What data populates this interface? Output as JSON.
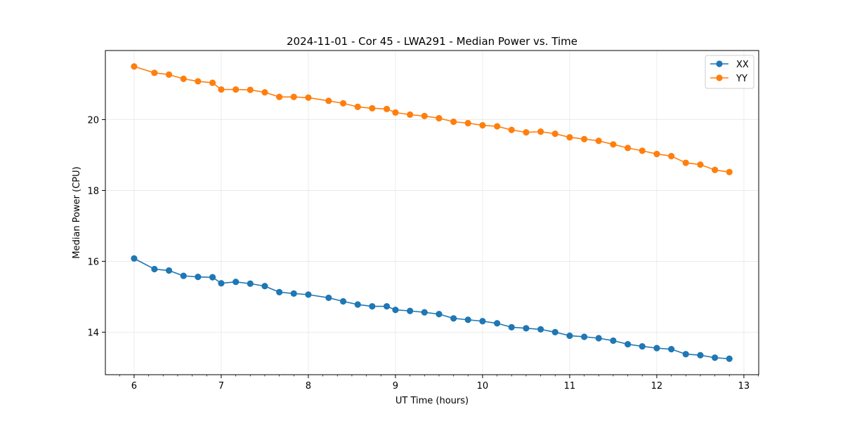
{
  "chart_data": {
    "type": "line",
    "title": "2024-11-01 - Cor 45 - LWA291 - Median Power vs. Time",
    "xlabel": "UT Time (hours)",
    "ylabel": "Median Power (CPU)",
    "xlim": [
      5.67,
      13.17
    ],
    "ylim": [
      12.8,
      21.95
    ],
    "xticks": [
      6,
      7,
      8,
      9,
      10,
      11,
      12,
      13
    ],
    "yticks": [
      14,
      16,
      18,
      20
    ],
    "grid": true,
    "legend_position": "upper right",
    "x": [
      6.0,
      6.233,
      6.4,
      6.567,
      6.733,
      6.9,
      7.0,
      7.167,
      7.333,
      7.5,
      7.667,
      7.833,
      8.0,
      8.233,
      8.4,
      8.567,
      8.733,
      8.9,
      9.0,
      9.167,
      9.333,
      9.5,
      9.667,
      9.833,
      10.0,
      10.167,
      10.333,
      10.5,
      10.667,
      10.833,
      11.0,
      11.167,
      11.333,
      11.5,
      11.667,
      11.833,
      12.0,
      12.167,
      12.333,
      12.5,
      12.667,
      12.833
    ],
    "series": [
      {
        "name": "XX",
        "color": "#1f77b4",
        "values": [
          16.08,
          15.78,
          15.74,
          15.59,
          15.56,
          15.55,
          15.38,
          15.42,
          15.37,
          15.3,
          15.13,
          15.09,
          15.06,
          14.97,
          14.87,
          14.78,
          14.73,
          14.73,
          14.63,
          14.6,
          14.56,
          14.51,
          14.39,
          14.35,
          14.31,
          14.25,
          14.14,
          14.11,
          14.08,
          14.0,
          13.9,
          13.87,
          13.83,
          13.76,
          13.66,
          13.6,
          13.55,
          13.52,
          13.38,
          13.35,
          13.28,
          13.25
        ]
      },
      {
        "name": "YY",
        "color": "#ff7f0e",
        "values": [
          21.5,
          21.32,
          21.27,
          21.15,
          21.08,
          21.04,
          20.85,
          20.85,
          20.84,
          20.77,
          20.64,
          20.64,
          20.62,
          20.53,
          20.46,
          20.36,
          20.32,
          20.3,
          20.2,
          20.14,
          20.1,
          20.04,
          19.94,
          19.9,
          19.84,
          19.81,
          19.71,
          19.64,
          19.66,
          19.6,
          19.5,
          19.45,
          19.4,
          19.3,
          19.2,
          19.12,
          19.03,
          18.97,
          18.78,
          18.73,
          18.58,
          18.52
        ]
      }
    ]
  }
}
